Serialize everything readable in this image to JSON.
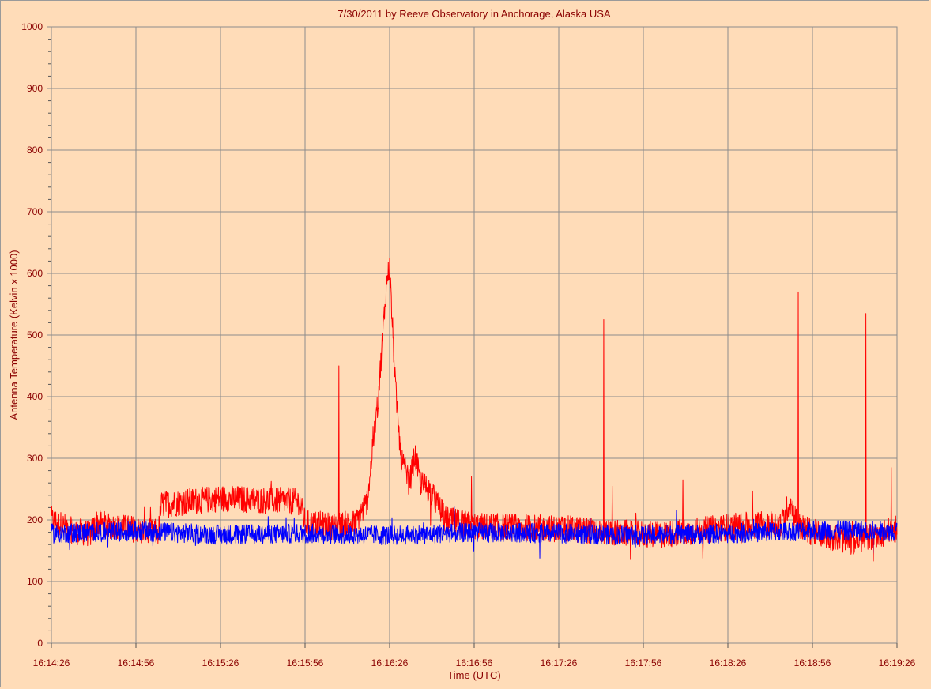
{
  "colors": {
    "background": "#ffdcb8",
    "grid": "#8c8c8c",
    "text": "#8b0000",
    "series_red": "#ff0000",
    "series_blue": "#0000ff"
  },
  "chart_data": {
    "type": "line",
    "title": "7/30/2011  by  Reeve Observatory  in  Anchorage, Alaska  USA",
    "xlabel": "Time (UTC)",
    "ylabel": "Antenna Temperature (Kelvin x 1000)",
    "xlim": [
      "16:14:26",
      "16:19:26"
    ],
    "ylim": [
      0,
      1000
    ],
    "x_tick_labels": [
      "16:14:26",
      "16:14:56",
      "16:15:26",
      "16:15:56",
      "16:16:26",
      "16:16:56",
      "16:17:26",
      "16:17:56",
      "16:18:26",
      "16:18:56",
      "16:19:26"
    ],
    "y_tick_labels": [
      "0",
      "100",
      "200",
      "300",
      "400",
      "500",
      "600",
      "700",
      "800",
      "900",
      "1000"
    ],
    "grid": true,
    "legend": "none",
    "series": [
      {
        "color": "#ff0000",
        "noise_amplitude": 22,
        "points": [
          [
            "16:14:26",
            200
          ],
          [
            "16:14:34",
            182
          ],
          [
            "16:14:40",
            178
          ],
          [
            "16:14:42",
            195
          ],
          [
            "16:14:50",
            188
          ],
          [
            "16:14:56",
            185
          ],
          [
            "16:14:58",
            180
          ],
          [
            "16:15:04",
            180
          ],
          [
            "16:15:05",
            225
          ],
          [
            "16:15:26",
            235
          ],
          [
            "16:15:40",
            232
          ],
          [
            "16:15:54",
            230
          ],
          [
            "16:15:56",
            195
          ],
          [
            "16:16:06",
            190
          ],
          [
            "16:16:14",
            195
          ],
          [
            "16:16:18",
            230
          ],
          [
            "16:16:22",
            400
          ],
          [
            "16:16:25",
            590
          ],
          [
            "16:16:26",
            610
          ],
          [
            "16:16:28",
            420
          ],
          [
            "16:16:30",
            300
          ],
          [
            "16:16:33",
            260
          ],
          [
            "16:16:35",
            305
          ],
          [
            "16:16:37",
            260
          ],
          [
            "16:16:40",
            250
          ],
          [
            "16:16:43",
            225
          ],
          [
            "16:16:46",
            200
          ],
          [
            "16:16:56",
            190
          ],
          [
            "16:17:30",
            185
          ],
          [
            "16:18:00",
            175
          ],
          [
            "16:18:30",
            190
          ],
          [
            "16:18:45",
            195
          ],
          [
            "16:18:48",
            230
          ],
          [
            "16:18:51",
            190
          ],
          [
            "16:18:56",
            180
          ],
          [
            "16:19:10",
            165
          ],
          [
            "16:19:18",
            175
          ],
          [
            "16:19:26",
            185
          ]
        ],
        "spikes": [
          [
            "16:16:08",
            450
          ],
          [
            "16:17:42",
            525
          ],
          [
            "16:17:45",
            255
          ],
          [
            "16:18:10",
            265
          ],
          [
            "16:18:51",
            570
          ],
          [
            "16:19:15",
            535
          ],
          [
            "16:19:24",
            285
          ],
          [
            "16:16:55",
            270
          ]
        ]
      },
      {
        "color": "#0000ff",
        "noise_amplitude": 16,
        "points": [
          [
            "16:14:26",
            178
          ],
          [
            "16:14:56",
            182
          ],
          [
            "16:15:26",
            176
          ],
          [
            "16:15:56",
            178
          ],
          [
            "16:16:26",
            175
          ],
          [
            "16:16:56",
            180
          ],
          [
            "16:17:26",
            178
          ],
          [
            "16:17:56",
            175
          ],
          [
            "16:18:26",
            178
          ],
          [
            "16:18:56",
            183
          ],
          [
            "16:19:26",
            182
          ]
        ],
        "spikes": []
      }
    ]
  }
}
